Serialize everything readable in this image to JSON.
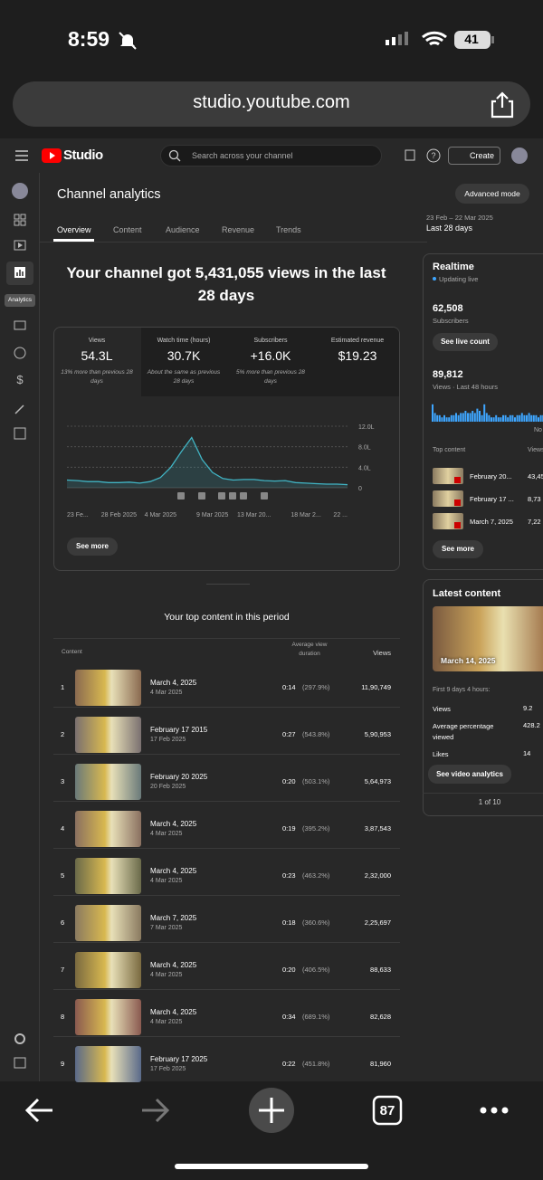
{
  "status_bar": {
    "time": "8:59",
    "battery": "41"
  },
  "browser": {
    "url": "studio.youtube.com",
    "tab_count": "87"
  },
  "studio_header": {
    "logo": "Studio",
    "search_placeholder": "Search across your channel",
    "create": "Create"
  },
  "sidebar": {
    "active_label": "Analytics"
  },
  "page": {
    "title": "Channel analytics",
    "advanced_mode": "Advanced mode",
    "tabs": [
      "Overview",
      "Content",
      "Audience",
      "Revenue",
      "Trends"
    ],
    "date_range": "23 Feb – 22 Mar 2025",
    "period": "Last 28 days",
    "headline": "Your channel got 5,431,055 views in the last 28 days"
  },
  "metrics": [
    {
      "label": "Views",
      "value": "54.3L",
      "note": "13% more than previous 28 days"
    },
    {
      "label": "Watch time (hours)",
      "value": "30.7K",
      "note": "About the same as previous 28 days"
    },
    {
      "label": "Subscribers",
      "value": "+16.0K",
      "note": "5% more than previous 28 days"
    },
    {
      "label": "Estimated revenue",
      "value": "$19.23"
    }
  ],
  "views_chart": {
    "type": "line",
    "color": "#41b4c4",
    "categories": [
      "23 Fe...",
      null,
      null,
      null,
      null,
      "28 Feb 2025",
      null,
      null,
      null,
      "4 Mar 2025",
      null,
      null,
      null,
      null,
      "9 Mar 2025",
      null,
      null,
      null,
      "13 Mar 20...",
      null,
      null,
      null,
      null,
      "18 Mar 2...",
      null,
      null,
      null,
      "22 ..."
    ],
    "values": [
      1.5,
      1.4,
      1.2,
      1.2,
      1.0,
      1.0,
      1.1,
      0.9,
      1.2,
      2.0,
      4.0,
      7.0,
      9.8,
      5.5,
      3.0,
      1.8,
      1.5,
      1.6,
      1.6,
      1.4,
      1.3,
      1.4,
      1.0,
      0.9,
      0.8,
      0.7,
      0.7,
      0.6
    ],
    "ylim": [
      0,
      12
    ],
    "yticks": [
      0,
      {
        "value": 4,
        "label": "4.0L"
      },
      {
        "value": 8,
        "label": "8.0L"
      },
      {
        "value": 12,
        "label": "12.0L"
      }
    ],
    "grid": true,
    "see_more": "See more"
  },
  "top_content": {
    "title": "Your top content in this period",
    "columns": [
      "Content",
      "Average view duration",
      "Views"
    ],
    "rows": [
      {
        "rank": "1",
        "title": "March 4, 2025",
        "date": "4 Mar 2025",
        "duration": "0:14",
        "percent": "(297.9%)",
        "views": "11,90,749"
      },
      {
        "rank": "2",
        "title": "February 17 2015",
        "date": "17 Feb 2025",
        "duration": "0:27",
        "percent": "(543.8%)",
        "views": "5,90,953"
      },
      {
        "rank": "3",
        "title": "February 20 2025",
        "date": "20 Feb 2025",
        "duration": "0:20",
        "percent": "(503.1%)",
        "views": "5,64,973"
      },
      {
        "rank": "4",
        "title": "March 4, 2025",
        "date": "4 Mar 2025",
        "duration": "0:19",
        "percent": "(395.2%)",
        "views": "3,87,543"
      },
      {
        "rank": "5",
        "title": "March 4, 2025",
        "date": "4 Mar 2025",
        "duration": "0:23",
        "percent": "(463.2%)",
        "views": "2,32,000"
      },
      {
        "rank": "6",
        "title": "March 7, 2025",
        "date": "7 Mar 2025",
        "duration": "0:18",
        "percent": "(360.6%)",
        "views": "2,25,697"
      },
      {
        "rank": "7",
        "title": "March 4, 2025",
        "date": "4 Mar 2025",
        "duration": "0:20",
        "percent": "(406.5%)",
        "views": "88,633"
      },
      {
        "rank": "8",
        "title": "March 4, 2025",
        "date": "4 Mar 2025",
        "duration": "0:34",
        "percent": "(689.1%)",
        "views": "82,628"
      },
      {
        "rank": "9",
        "title": "February 17 2025",
        "date": "17 Feb 2025",
        "duration": "0:22",
        "percent": "(451.8%)",
        "views": "81,960"
      }
    ]
  },
  "realtime": {
    "title": "Realtime",
    "status": "Updating live",
    "subscribers": "62,508",
    "subscribers_label": "Subscribers",
    "live_button": "See live count",
    "views": "89,812",
    "views_label": "Views · Last 48 hours",
    "now_label": "No",
    "bars": {
      "type": "bar",
      "color": "#3ea6ff",
      "ylim": [
        0,
        10
      ],
      "values": [
        8,
        4,
        3,
        3,
        2,
        3,
        2,
        2,
        3,
        3,
        4,
        3,
        4,
        4,
        5,
        4,
        4,
        5,
        4,
        6,
        5,
        3,
        8,
        4,
        3,
        2,
        2,
        3,
        2,
        2,
        3,
        3,
        2,
        3,
        3,
        2,
        3,
        3,
        4,
        3,
        3,
        4,
        3,
        3,
        3,
        2,
        3,
        3
      ]
    },
    "top_content_label": "Top content",
    "views_col": "Views",
    "items": [
      {
        "title": "February 20...",
        "views": "43,45"
      },
      {
        "title": "February 17 ...",
        "views": "8,73"
      },
      {
        "title": "March 7, 2025",
        "views": "7,22"
      }
    ],
    "see_more": "See more"
  },
  "latest_content": {
    "title": "Latest content",
    "video_date": "March 14, 2025",
    "period": "First 9 days 4 hours:",
    "stats": [
      {
        "label": "Views",
        "value": "9.2"
      },
      {
        "label": "Average percentage viewed",
        "value": "428.2"
      },
      {
        "label": "Likes",
        "value": "14"
      }
    ],
    "button": "See video analytics",
    "pager": "1 of 10"
  }
}
